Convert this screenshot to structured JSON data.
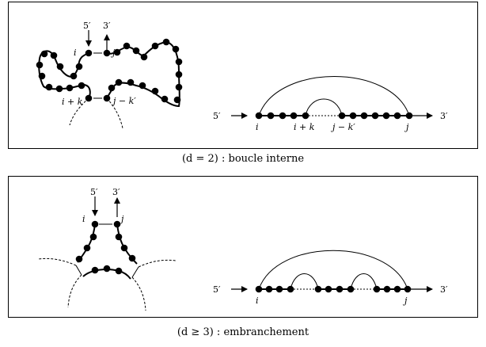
{
  "top_panel": {
    "loop_labels": {
      "five_prime": "5′",
      "three_prime": "3′",
      "i": "i",
      "j": "j",
      "i_plus_k": "i + k",
      "j_minus_k_prime": "j − k′"
    },
    "arc_labels": {
      "five_prime": "5′",
      "three_prime": "3′",
      "i": "i",
      "i_plus_k": "i + k",
      "j_minus_k_prime": "j − k′",
      "j": "j"
    }
  },
  "top_caption": "(d = 2) : boucle interne",
  "bottom_panel": {
    "loop_labels": {
      "five_prime": "5′",
      "three_prime": "3′",
      "i": "i",
      "j": "j"
    },
    "arc_labels": {
      "five_prime": "5′",
      "three_prime": "3′",
      "i": "i",
      "j": "j"
    }
  },
  "bottom_caption": "(d ≥ 3) : embranchement"
}
